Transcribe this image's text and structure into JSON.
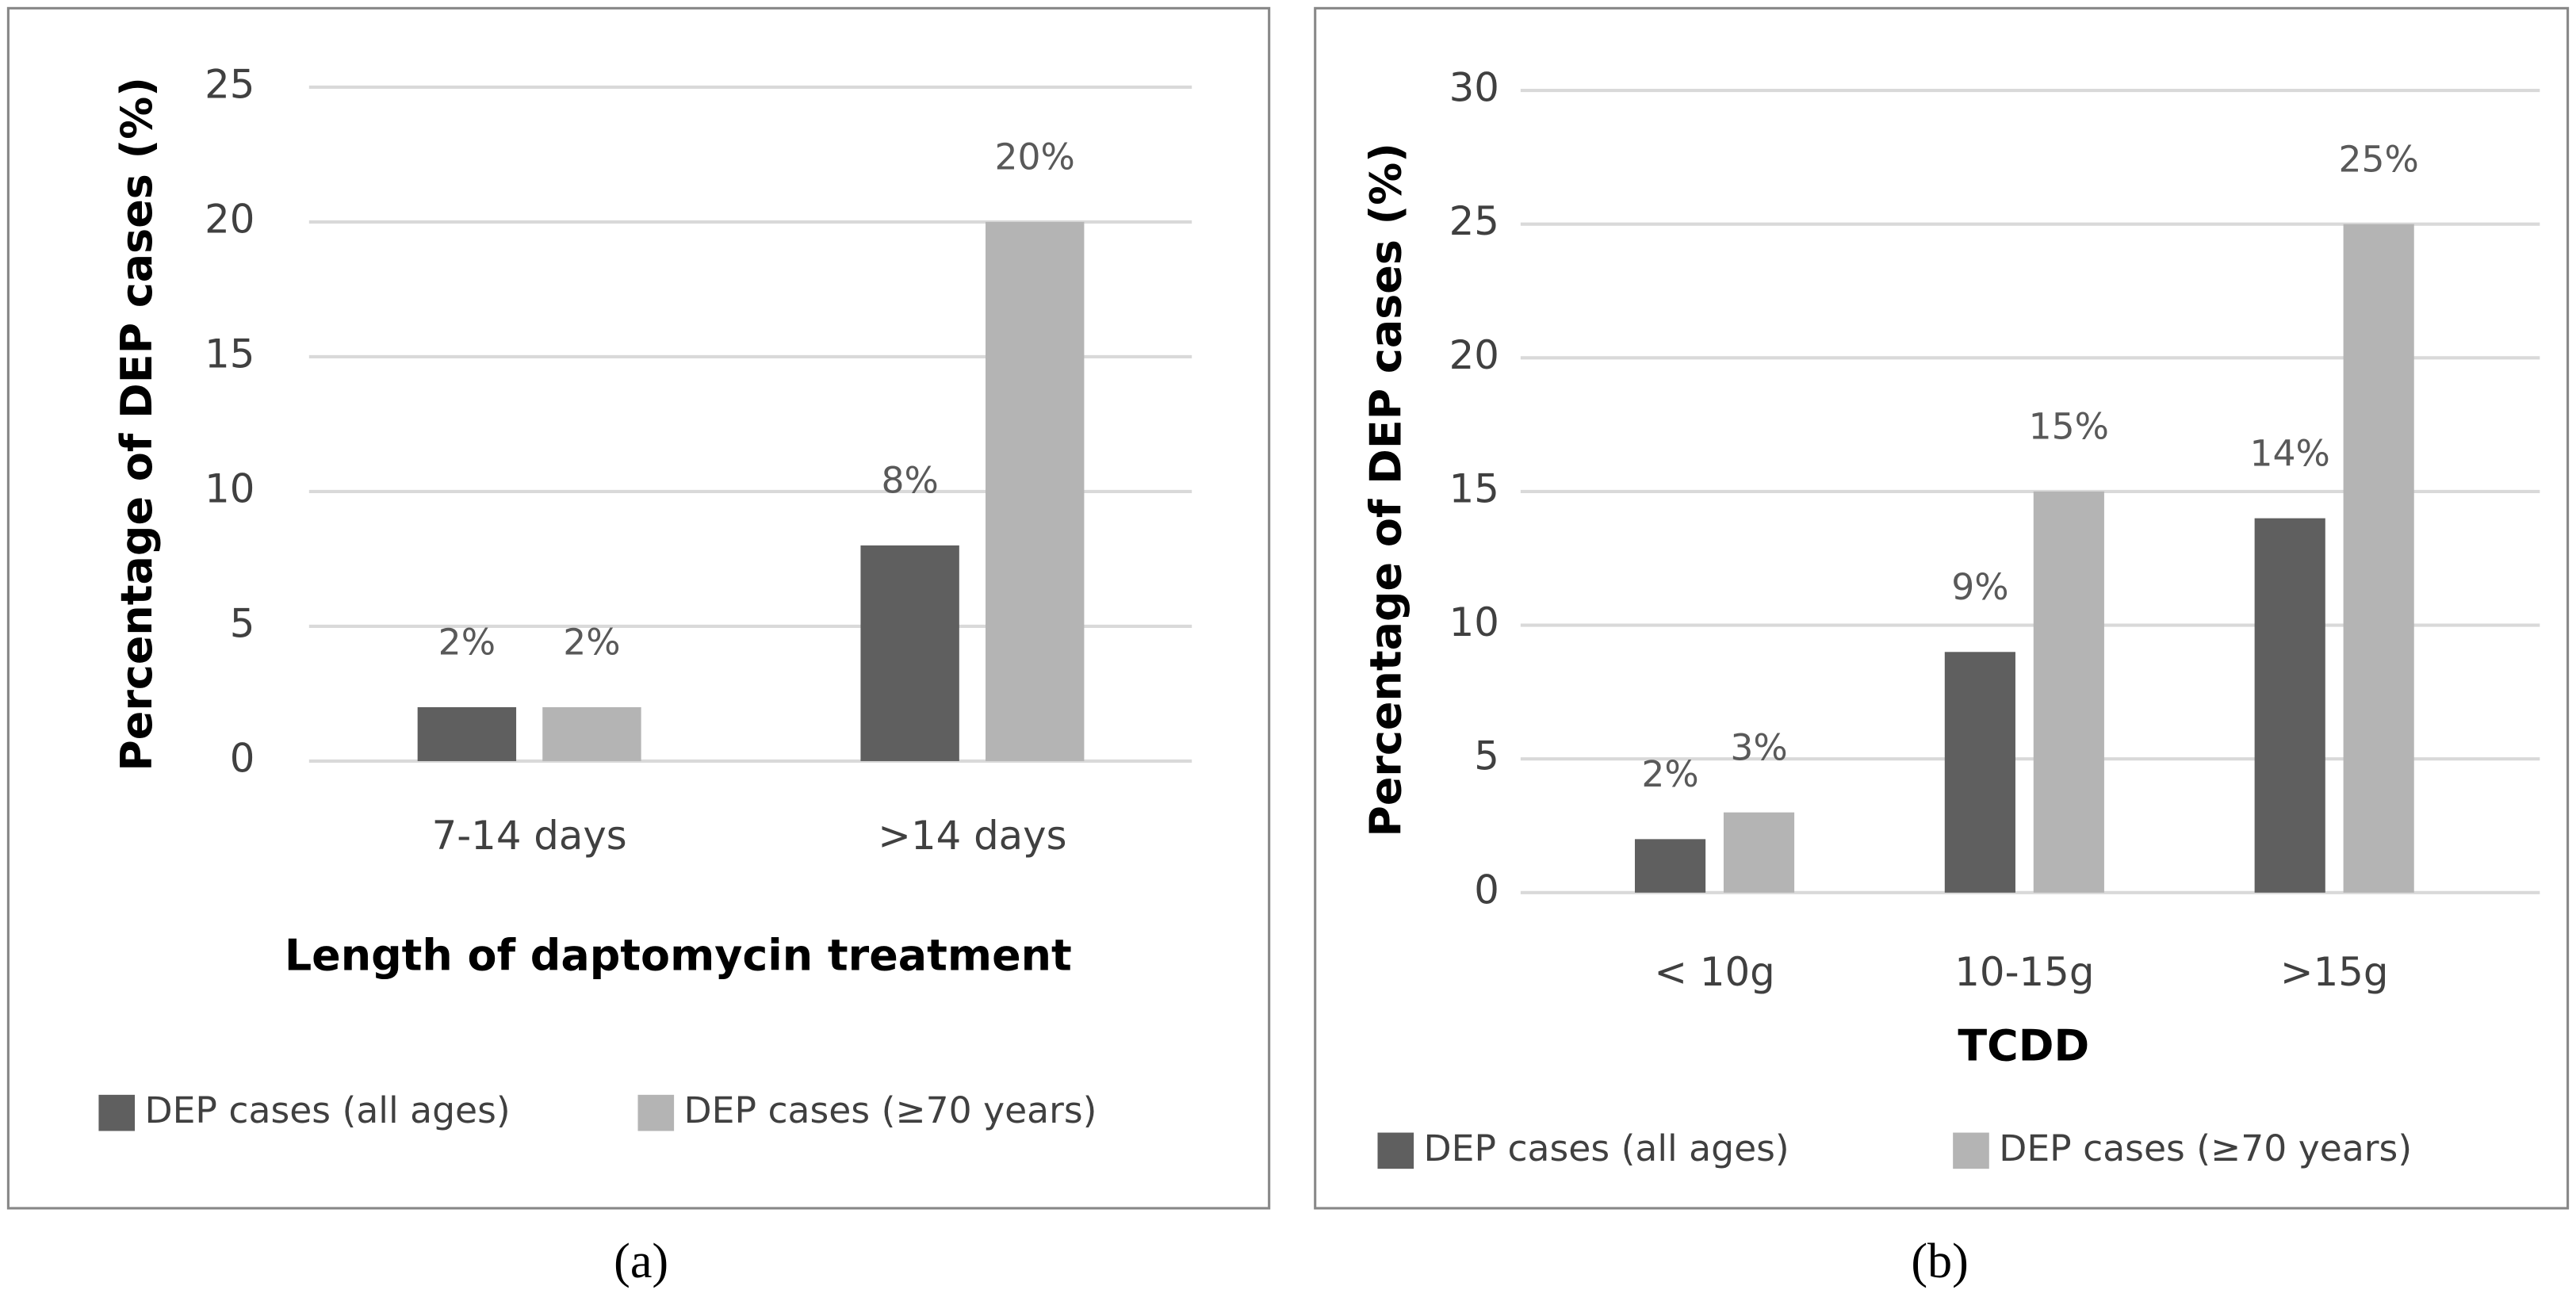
{
  "chart_data": [
    {
      "type": "bar",
      "y_label": "Percentage of DEP cases  (%)",
      "x_label": "Length of daptomycin treatment",
      "categories": [
        "7-14 days",
        ">14 days"
      ],
      "series": [
        {
          "name": "DEP cases (all ages)",
          "color": "#5f5f5f",
          "values": [
            2,
            8
          ],
          "value_labels": [
            "2%",
            "8%"
          ]
        },
        {
          "name": "DEP cases (≥70 years)",
          "color": "#b4b4b4",
          "values": [
            2,
            20
          ],
          "value_labels": [
            "2%",
            "20%"
          ]
        }
      ],
      "ylim": [
        0,
        25
      ],
      "yticks": [
        0,
        5,
        10,
        15,
        20,
        25
      ],
      "grid": true,
      "legend": "bottom",
      "caption": "(a)"
    },
    {
      "type": "bar",
      "y_label": "Percentage of DEP cases (%)",
      "x_label": "TCDD",
      "categories": [
        "< 10g",
        "10-15g",
        ">15g"
      ],
      "series": [
        {
          "name": "DEP cases (all ages)",
          "color": "#5f5f5f",
          "values": [
            2,
            9,
            14
          ],
          "value_labels": [
            "2%",
            "9%",
            "14%"
          ]
        },
        {
          "name": "DEP cases (≥70 years)",
          "color": "#b4b4b4",
          "values": [
            3,
            15,
            25
          ],
          "value_labels": [
            "3%",
            "15%",
            "25%"
          ]
        }
      ],
      "ylim": [
        0,
        30
      ],
      "yticks": [
        0,
        5,
        10,
        15,
        20,
        25,
        30
      ],
      "grid": true,
      "legend": "bottom",
      "caption": "(b)"
    }
  ]
}
